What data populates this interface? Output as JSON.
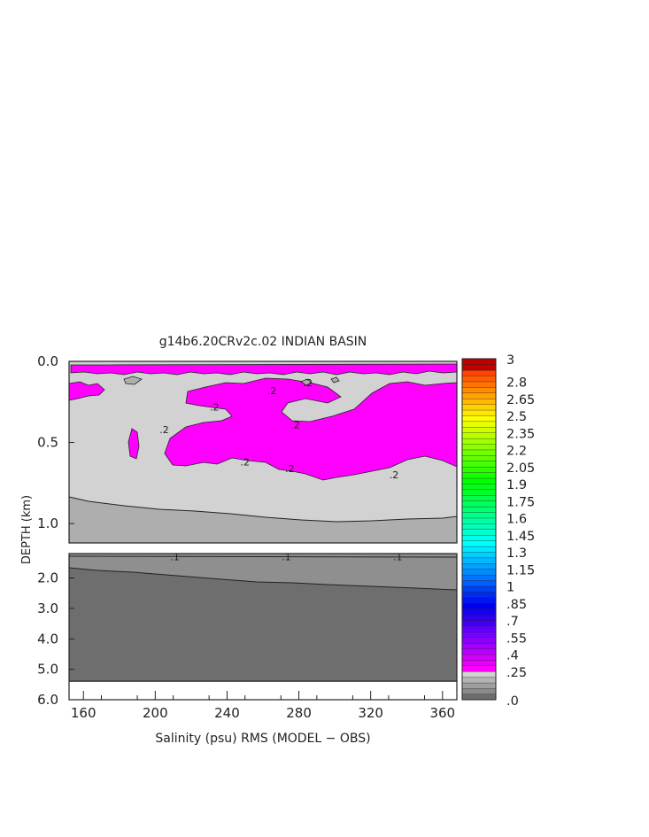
{
  "chart_data": {
    "type": "heatmap",
    "title": "g14b6.20CRv2c.02 INDIAN BASIN",
    "xlabel": "Salinity (psu) RMS (MODEL − OBS)",
    "ylabel": "DEPTH (km)",
    "x_ticks": [
      "160",
      "200",
      "240",
      "280",
      "320",
      "360"
    ],
    "x_tick_values": [
      160,
      200,
      240,
      280,
      320,
      360
    ],
    "xlim": [
      152,
      368
    ],
    "upper_panel": {
      "ylim": [
        0.0,
        1.12
      ],
      "y_ticks": [
        "0.0",
        "0.5",
        "1.0"
      ],
      "y_tick_values": [
        0.0,
        0.5,
        1.0
      ]
    },
    "lower_panel": {
      "ylim": [
        1.2,
        6.0
      ],
      "y_ticks": [
        "2.0",
        "3.0",
        "4.0",
        "5.0",
        "6.0"
      ],
      "y_tick_values": [
        2.0,
        3.0,
        4.0,
        5.0,
        6.0
      ]
    },
    "contour_labels": [
      {
        "text": ".2",
        "x": 265,
        "y": 0.18
      },
      {
        "text": ".2",
        "x": 285,
        "y": 0.13
      },
      {
        "text": ".2",
        "x": 233,
        "y": 0.28
      },
      {
        "text": ".2",
        "x": 205,
        "y": 0.42
      },
      {
        "text": ".2",
        "x": 278,
        "y": 0.39
      },
      {
        "text": ".2",
        "x": 250,
        "y": 0.62
      },
      {
        "text": ".2",
        "x": 275,
        "y": 0.66
      },
      {
        "text": ".2",
        "x": 333,
        "y": 0.7
      },
      {
        "text": ".1",
        "x": 211,
        "y": 1.3
      },
      {
        "text": ".1",
        "x": 273,
        "y": 1.3
      },
      {
        "text": ".1",
        "x": 335,
        "y": 1.3
      }
    ],
    "colorbar": {
      "labels": [
        ".0",
        ".25",
        ".4",
        ".55",
        ".7",
        ".85",
        "1",
        "1.15",
        "1.3",
        "1.45",
        "1.6",
        "1.75",
        "1.9",
        "2.05",
        "2.2",
        "2.35",
        "2.5",
        "2.65",
        "2.8",
        "3"
      ],
      "label_values": [
        0.0,
        0.25,
        0.4,
        0.55,
        0.7,
        0.85,
        1.0,
        1.15,
        1.3,
        1.45,
        1.6,
        1.75,
        1.9,
        2.05,
        2.2,
        2.35,
        2.5,
        2.65,
        2.8,
        3.0
      ],
      "range": [
        0.0,
        3.0
      ]
    }
  },
  "colors": {
    "magenta": "#ff00ff",
    "light_gray": "#d2d2d2",
    "mid_gray": "#aeaeae",
    "dark_gray": "#8f8f8f",
    "darkest_gray": "#6e6e6e",
    "axis": "#222222"
  }
}
